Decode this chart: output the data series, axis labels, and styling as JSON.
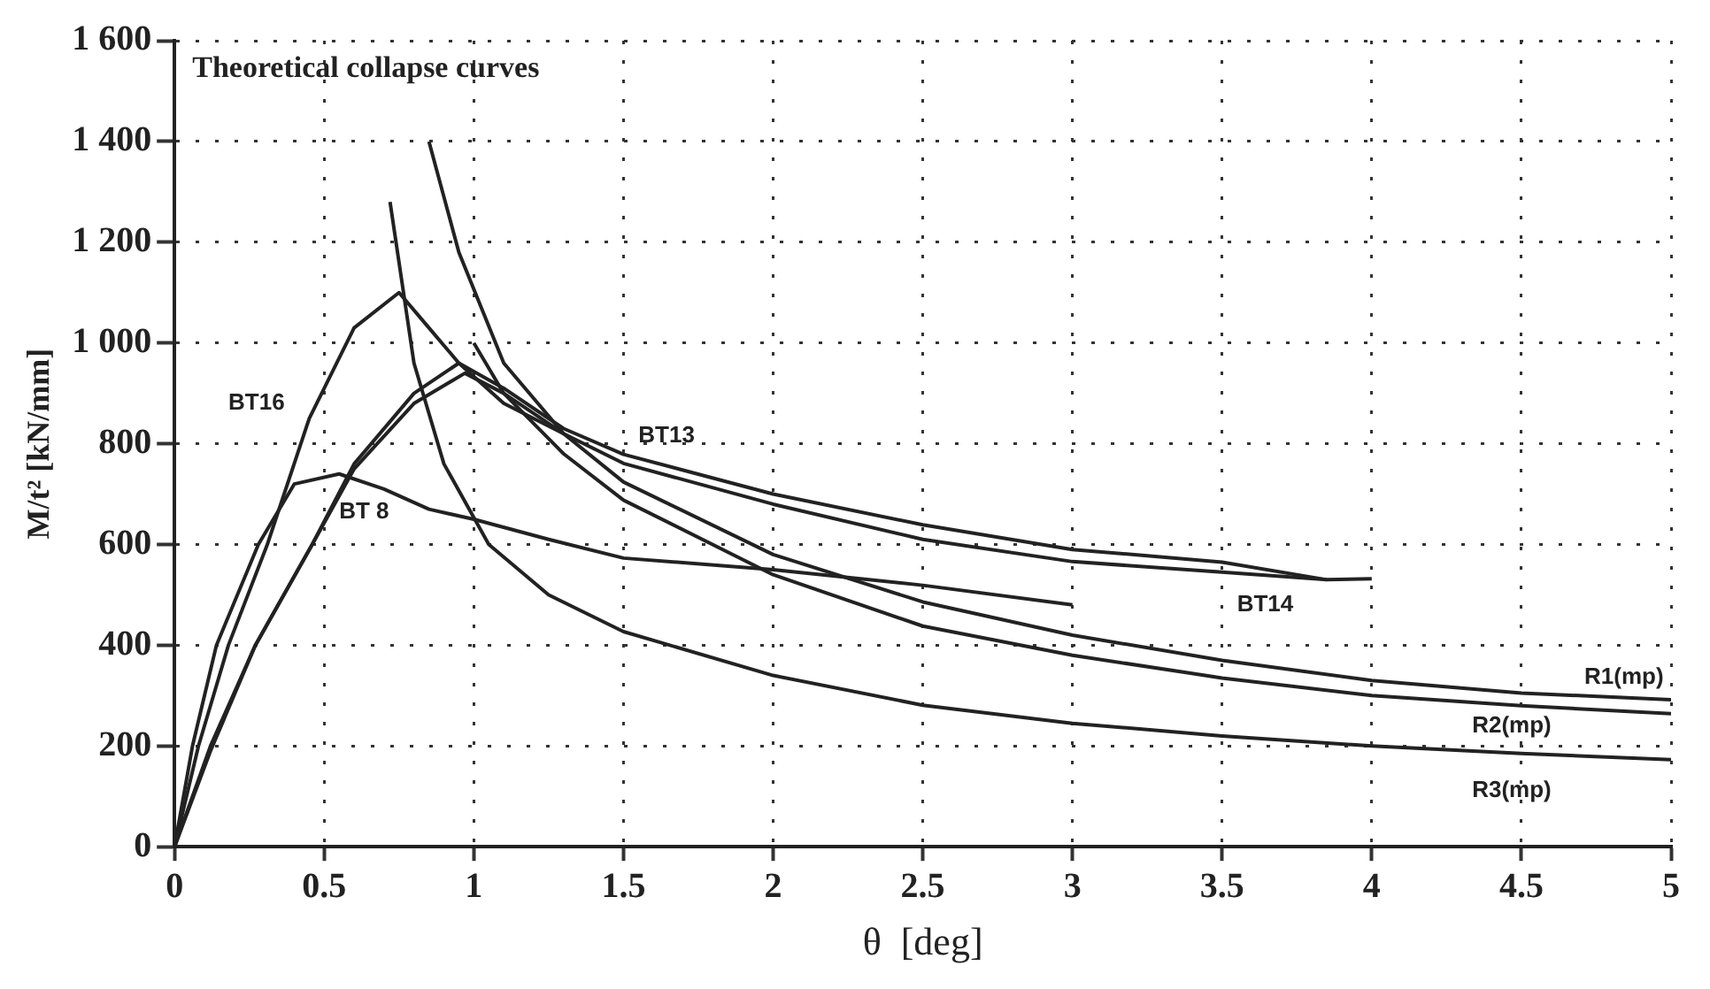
{
  "chart_data": {
    "type": "line",
    "xlabel": "θ  [deg]",
    "ylabel": "M/t² [kN/mm]",
    "xlim": [
      0,
      5
    ],
    "xticks": [
      0,
      0.5,
      1,
      1.5,
      2,
      2.5,
      3,
      3.5,
      4,
      4.5,
      5
    ],
    "ylim": [
      0,
      1600
    ],
    "yticks": [
      0,
      200,
      400,
      600,
      800,
      {
        "value": 1000,
        "label": "1 000"
      },
      {
        "value": 1200,
        "label": "1 200"
      },
      {
        "value": 1400,
        "label": "1 400"
      },
      {
        "value": 1600,
        "label": "1 600"
      }
    ],
    "grid": true,
    "legend": false,
    "marker": "none",
    "line_style": "solid",
    "series": [
      {
        "name": "BT16",
        "color": "#222222",
        "x": [
          0,
          0.08,
          0.18,
          0.31,
          0.45,
          0.6,
          0.75,
          0.85,
          0.95,
          1.1,
          1.3
        ],
        "values": [
          0,
          200,
          400,
          600,
          850,
          1030,
          1100,
          1030,
          960,
          880,
          820
        ]
      },
      {
        "name": "BT13",
        "color": "#222222",
        "x": [
          0,
          0.12,
          0.27,
          0.46,
          0.6,
          0.8,
          0.95,
          1.1,
          1.3,
          1.5,
          2,
          2.5,
          3,
          3.5,
          3.85
        ],
        "values": [
          0,
          200,
          400,
          600,
          760,
          900,
          960,
          910,
          830,
          779,
          700,
          639,
          590,
          565,
          530
        ]
      },
      {
        "name": "BT14",
        "color": "#222222",
        "x": [
          0,
          0.12,
          0.27,
          0.46,
          0.6,
          0.8,
          0.97,
          1.1,
          1.3,
          1.5,
          2,
          2.5,
          3,
          3.5,
          3.85,
          4
        ],
        "values": [
          0,
          190,
          400,
          600,
          750,
          880,
          940,
          900,
          820,
          761,
          680,
          610,
          566,
          545,
          530,
          532
        ]
      },
      {
        "name": "BT 8",
        "color": "#222222",
        "x": [
          0,
          0.06,
          0.14,
          0.28,
          0.4,
          0.55,
          0.7,
          0.85,
          1,
          1.25,
          1.5,
          2,
          2.5,
          3
        ],
        "values": [
          0,
          200,
          400,
          600,
          720,
          740,
          710,
          670,
          650,
          610,
          573,
          550,
          519,
          480
        ]
      },
      {
        "name": "R1(mp)",
        "color": "#222222",
        "x": [
          0.85,
          0.95,
          1.1,
          1.3,
          1.5,
          2,
          2.5,
          3,
          3.5,
          4,
          4.5,
          5
        ],
        "values": [
          1400,
          1180,
          960,
          820,
          724,
          580,
          486,
          420,
          370,
          330,
          305,
          292
        ]
      },
      {
        "name": "R2(mp)",
        "color": "#222222",
        "x": [
          1.0,
          1.1,
          1.3,
          1.5,
          2,
          2.5,
          3,
          3.5,
          4,
          4.5,
          5
        ],
        "values": [
          1000,
          900,
          780,
          688,
          540,
          438,
          380,
          335,
          300,
          280,
          264
        ]
      },
      {
        "name": "R3(mp)",
        "color": "#222222",
        "x": [
          0.72,
          0.8,
          0.9,
          1.05,
          1.25,
          1.5,
          2,
          2.5,
          3,
          3.5,
          4,
          4.5,
          5
        ],
        "values": [
          1280,
          960,
          760,
          600,
          500,
          427,
          340,
          281,
          245,
          220,
          200,
          185,
          173
        ]
      }
    ],
    "annotations": [
      "Theoretical collapse curves"
    ]
  }
}
